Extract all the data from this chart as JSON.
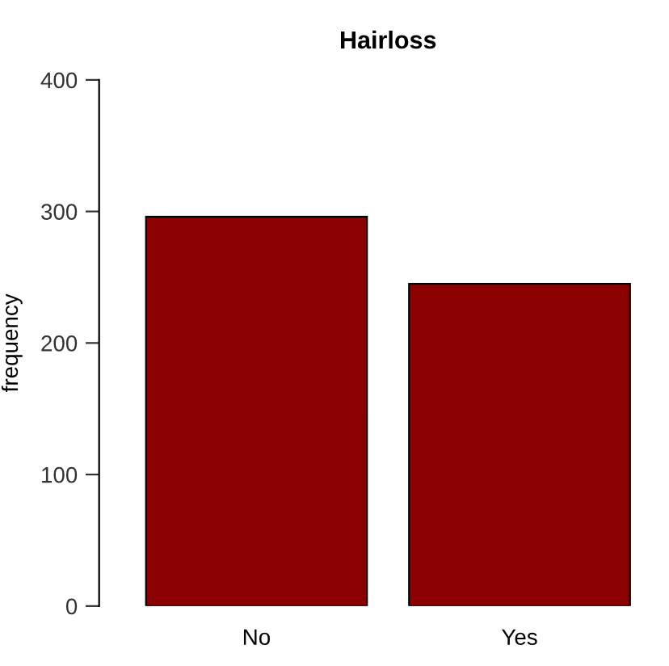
{
  "chart_data": {
    "type": "bar",
    "title": "Hairloss",
    "ylabel": "frequency",
    "categories": [
      "No",
      "Yes"
    ],
    "values": [
      296,
      245
    ],
    "color": "#8b0000",
    "ylim": [
      0,
      400
    ],
    "yticks": [
      0,
      100,
      200,
      300,
      400
    ],
    "grid": false,
    "legend": false
  }
}
